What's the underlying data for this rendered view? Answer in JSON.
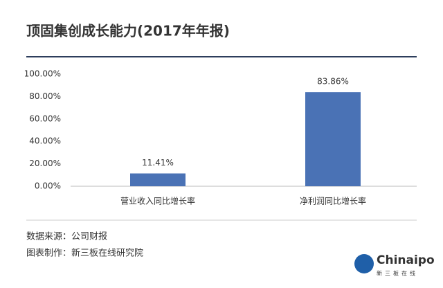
{
  "chart_data": {
    "type": "bar",
    "title": "顶固集创成长能力(2017年年报)",
    "categories": [
      "营业收入同比增长率",
      "净利润同比增长率"
    ],
    "values": [
      11.41,
      83.86
    ],
    "value_labels": [
      "11.41%",
      "83.86%"
    ],
    "color": "#4a72b5",
    "ylim": [
      0,
      100
    ],
    "yticks": [
      {
        "value": 0,
        "label": "0.00%"
      },
      {
        "value": 20,
        "label": "20.00%"
      },
      {
        "value": 40,
        "label": "40.00%"
      },
      {
        "value": 60,
        "label": "60.00%"
      },
      {
        "value": 80,
        "label": "80.00%"
      },
      {
        "value": 100,
        "label": "100.00%"
      }
    ],
    "grid": false
  },
  "footer": {
    "source": "数据来源：公司财报",
    "maker": "图表制作：新三板在线研究院"
  },
  "logo": {
    "name": "Chinaipo",
    "tagline": "新三板在线"
  }
}
